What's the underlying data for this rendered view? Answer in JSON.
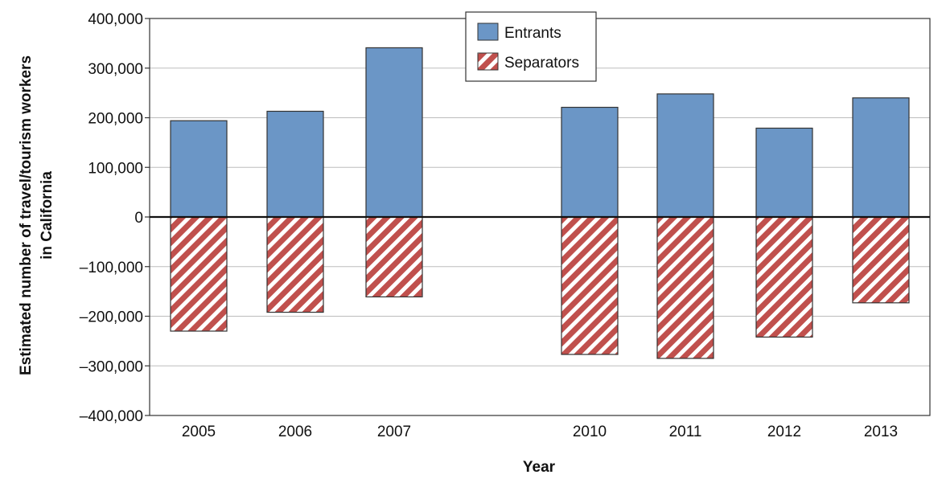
{
  "chart_data": {
    "type": "bar",
    "stacked": true,
    "categories": [
      "2005",
      "2006",
      "2007",
      "2010",
      "2011",
      "2012",
      "2013"
    ],
    "series": [
      {
        "name": "Entrants",
        "values": [
          194000,
          213000,
          341000,
          221000,
          248000,
          179000,
          240000
        ],
        "color": "#6b96c6",
        "pattern": "solid"
      },
      {
        "name": "Separators",
        "values": [
          -230000,
          -192000,
          -161000,
          -277000,
          -285000,
          -242000,
          -173000
        ],
        "color": "#c0504d",
        "pattern": "diagonal-hatch"
      }
    ],
    "title": "",
    "xlabel": "Year",
    "ylabel": "Estimated number of travel/tourism workers in California",
    "ylabel_lines": [
      "Estimated number of travel/tourism workers",
      "in California"
    ],
    "ylim": [
      -400000,
      400000
    ],
    "yticks": [
      400000,
      300000,
      200000,
      100000,
      0,
      -100000,
      -200000,
      -300000,
      -400000
    ],
    "ytick_labels": [
      "400,000",
      "300,000",
      "200,000",
      "100,000",
      "0",
      "–100,000",
      "–200,000",
      "–300,000",
      "–400,000"
    ],
    "grid": true,
    "legend": {
      "position": "top-center",
      "entries": [
        "Entrants",
        "Separators"
      ]
    }
  }
}
